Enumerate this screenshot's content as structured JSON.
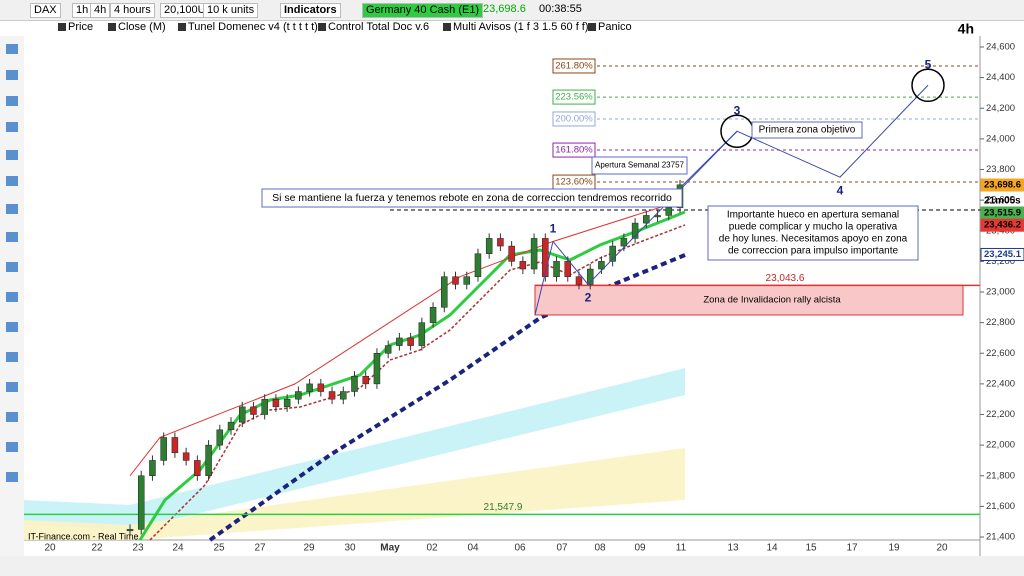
{
  "toolbar": {
    "symbol": "DAX",
    "intervals": [
      "1h",
      "4h"
    ],
    "period": "4 hours",
    "quantity": "20,100U",
    "units": "10 k units",
    "indicators": "Indicators",
    "instrument": "Germany 40 Cash (E1)",
    "price": "23,698.6",
    "time": "00:38:55"
  },
  "legend_bar": [
    "Price",
    "Close (M)",
    "Tunel Domenec v4 (t t t t t)",
    "Control Total Doc v.6",
    "Multi Avisos (1 f 3 1.5 60 f f)",
    "Panico"
  ],
  "chart_data": {
    "type": "candlestick",
    "timeframe": "4h",
    "source": "IT-Finance.com - Real Time",
    "x_labels": [
      "20",
      "22",
      "23",
      "24",
      "25",
      "27",
      "29",
      "30",
      "May",
      "02",
      "04",
      "06",
      "07",
      "08",
      "09",
      "11",
      "13",
      "14",
      "15",
      "17",
      "19",
      "20"
    ],
    "ylim": [
      21400,
      24600
    ],
    "yticks": [
      {
        "value": 21400,
        "label": "21,400"
      },
      {
        "value": 21600,
        "label": "21,600"
      },
      {
        "value": 21800,
        "label": "21,800"
      },
      {
        "value": 22000,
        "label": "22,000"
      },
      {
        "value": 22200,
        "label": "22,200"
      },
      {
        "value": 22400,
        "label": "22,400"
      },
      {
        "value": 22600,
        "label": "22,600"
      },
      {
        "value": 22800,
        "label": "22,800"
      },
      {
        "value": 23000,
        "label": "23,000"
      },
      {
        "value": 23200,
        "label": "23,200"
      },
      {
        "value": 23400,
        "label": "23,400"
      },
      {
        "value": 23600,
        "label": "23,600"
      },
      {
        "value": 23800,
        "label": "23,800"
      },
      {
        "value": 24000,
        "label": "24,000"
      },
      {
        "value": 24200,
        "label": "24,200"
      },
      {
        "value": 24400,
        "label": "24,400"
      },
      {
        "value": 24600,
        "label": "24,600"
      }
    ],
    "closes": [
      21450,
      21800,
      21900,
      22050,
      21950,
      21900,
      21800,
      22000,
      22100,
      22150,
      22250,
      22200,
      22300,
      22250,
      22300,
      22350,
      22400,
      22350,
      22300,
      22350,
      22450,
      22400,
      22600,
      22650,
      22700,
      22650,
      22800,
      22900,
      23100,
      23050,
      23100,
      23250,
      23350,
      23300,
      23200,
      23150,
      23350,
      23100,
      23200,
      23100,
      23050,
      23150,
      23200,
      23300,
      23350,
      23450,
      23500,
      23500,
      23550,
      23700
    ],
    "fib_levels": [
      {
        "label": "261.80%",
        "value": 24476,
        "color": "#8b4513"
      },
      {
        "label": "223.56%",
        "value": 24273,
        "color": "#3cb043"
      },
      {
        "label": "200.00%",
        "value": 24130,
        "color": "#8fa8d8"
      },
      {
        "label": "161.80%",
        "value": 23927,
        "color": "#8e24aa"
      },
      {
        "label": "123.60%",
        "value": 23718,
        "color": "#8b4513"
      }
    ],
    "price_tags": [
      {
        "label": "23,698.6",
        "value": 23698.6,
        "color": "#f5a623"
      },
      {
        "label": "23,515.9",
        "value": 23515.9,
        "color": "#4caf50"
      },
      {
        "label": "23,436.2",
        "value": 23436.2,
        "color": "#e53935"
      },
      {
        "label": "23,245.1",
        "value": 23245.1,
        "color": "#1e3a8a"
      }
    ],
    "countdown": "21m05s",
    "zone": {
      "label": "Zona de Invalidacion rally alcista",
      "top_label": "23,043.6",
      "top": 23043.6,
      "bottom": 22850
    },
    "support": {
      "label": "21,547.9",
      "value": 21547.9
    },
    "waves": [
      {
        "label": "1",
        "value": 23330
      },
      {
        "label": "2",
        "value": 23050
      },
      {
        "label": "3",
        "value": 24050
      },
      {
        "label": "4",
        "value": 23750
      },
      {
        "label": "5",
        "value": 24350
      }
    ],
    "annotations": {
      "opening": "Apertura Semanal 23757",
      "scenario": "Si se mantiene la fuerza y tenemos rebote en zona de correccion tendremos recorrido",
      "target": "Primera zona objetivo",
      "warning": [
        "Importante hueco en apertura semanal",
        "puede complicar y mucho la operativa",
        "de hoy lunes. Necesitamos apoyo en zona",
        "de correccion para impulso importante"
      ]
    }
  }
}
